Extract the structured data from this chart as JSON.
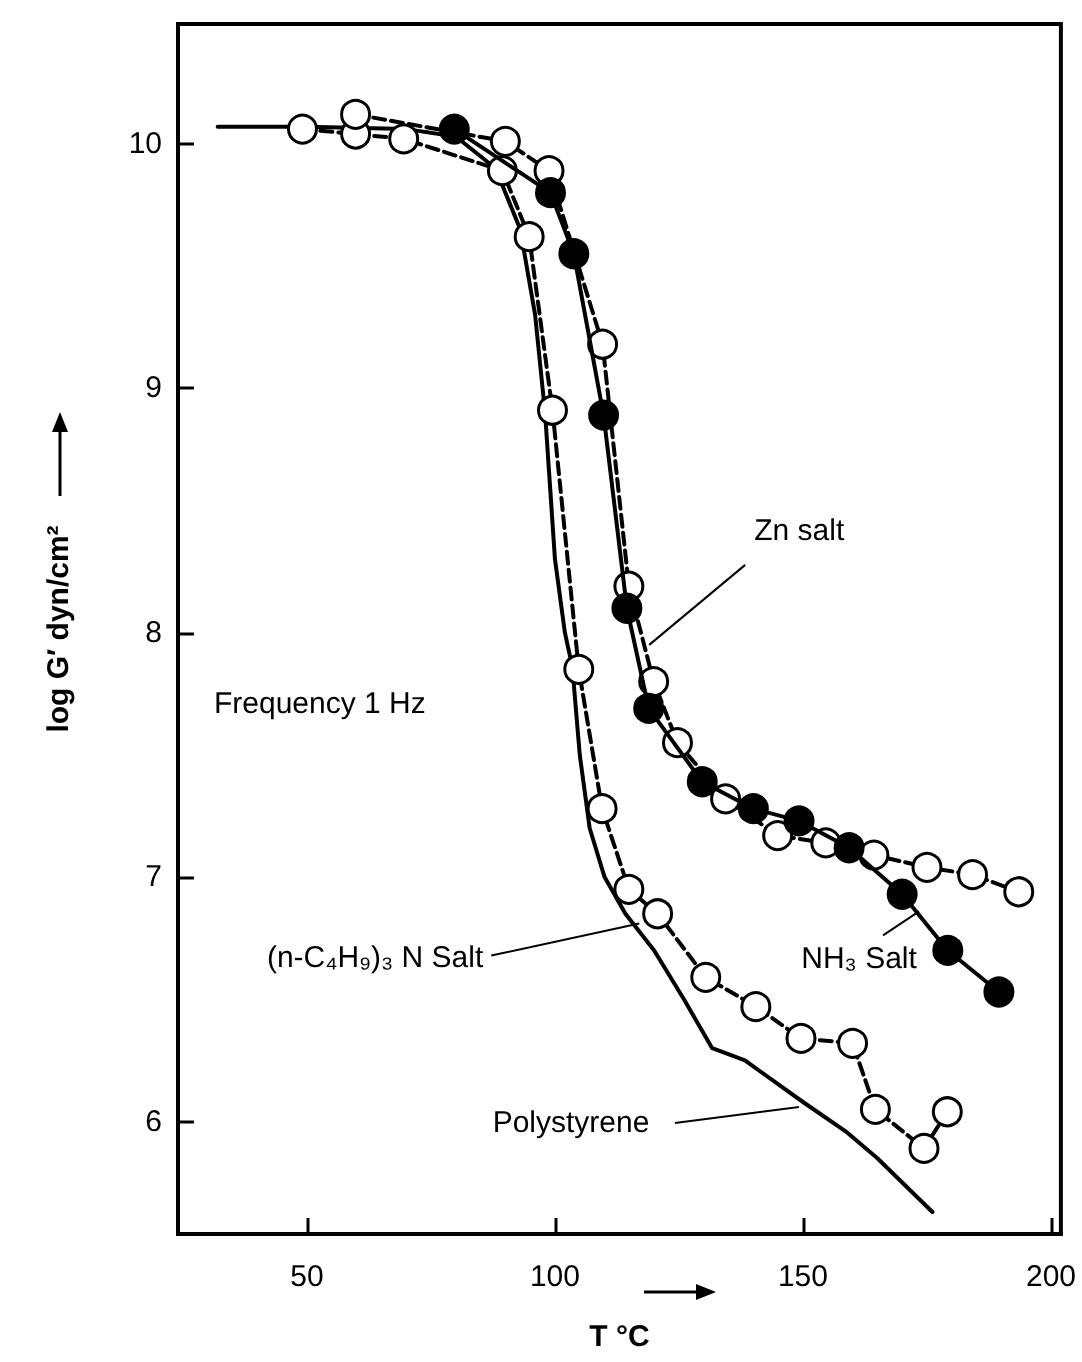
{
  "chart_data": {
    "type": "line",
    "xlabel": "T °C",
    "ylabel": "log G′ dyn/cm²",
    "xlim": [
      24,
      202
    ],
    "ylim": [
      5.54,
      10.49
    ],
    "xticks": [
      50,
      100,
      150,
      200
    ],
    "yticks": [
      6,
      7,
      8,
      9,
      10
    ],
    "grid": false,
    "series": [
      {
        "color": "#000000",
        "line_style": "solid",
        "marker": "none",
        "x": [
          32,
          50,
          70,
          80,
          88,
          93,
          96,
          98,
          100,
          102,
          103.5,
          105,
          107,
          110,
          114.2,
          120,
          126,
          131.7,
          138.3,
          150,
          158.6,
          165,
          176.1
        ],
        "values": [
          10.07,
          10.07,
          10.06,
          10.03,
          9.9,
          9.65,
          9.3,
          8.9,
          8.3,
          8.0,
          7.86,
          7.5,
          7.2,
          7.0,
          6.85,
          6.7,
          6.5,
          6.3,
          6.25,
          6.08,
          5.96,
          5.85,
          5.63
        ]
      },
      {
        "color": "#000000",
        "colors": [
          "#ffffff",
          "#ffffff",
          "#ffffff",
          "#ffffff",
          "#ffffff",
          "#ffffff",
          "#ffffff",
          "#ffffff",
          "#ffffff",
          "#ffffff",
          "#ffffff",
          "#ffffff",
          "#ffffff",
          "#ffffff",
          "#ffffff",
          "#ffffff",
          "#ffffff"
        ],
        "line_style": "dashed",
        "marker": "circle",
        "x": [
          49.1,
          59.8,
          69.5,
          89.4,
          94.8,
          99.5,
          104.8,
          109.5,
          114.9,
          120.7,
          130.4,
          140.5,
          149.6,
          160,
          164.6,
          174.4,
          179.1
        ],
        "values": [
          10.06,
          10.04,
          10.02,
          9.89,
          9.62,
          8.91,
          7.85,
          7.28,
          6.95,
          6.85,
          6.59,
          6.47,
          6.34,
          6.32,
          6.05,
          5.89,
          6.04
        ]
      },
      {
        "color": "#000000",
        "colors": [
          "#ffffff",
          "#ffffff",
          "#ffffff",
          "#ffffff",
          "#ffffff",
          "#ffffff",
          "#ffffff",
          "#ffffff",
          "#ffffff",
          "#ffffff",
          "#ffffff",
          "#ffffff",
          "#ffffff",
          "#ffffff"
        ],
        "line_style": "dashed",
        "marker": "circle",
        "x": [
          59.8,
          90.0,
          98.8,
          109.6,
          114.9,
          119.9,
          124.7,
          134.4,
          144.9,
          154.6,
          164.3,
          175.0,
          184.2,
          193.5
        ],
        "values": [
          10.12,
          10.01,
          9.89,
          9.18,
          8.19,
          7.8,
          7.55,
          7.32,
          7.17,
          7.14,
          7.09,
          7.04,
          7.01,
          6.94
        ]
      },
      {
        "color": "#000000",
        "colors": [
          "#000000",
          "#000000",
          "#000000",
          "#000000",
          "#000000",
          "#000000",
          "#000000",
          "#000000",
          "#000000",
          "#000000",
          "#000000",
          "#000000",
          "#000000"
        ],
        "line_style": "solid",
        "marker": "circle",
        "x": [
          79.7,
          99.1,
          103.8,
          109.8,
          114.5,
          118.9,
          129.7,
          140.0,
          149.2,
          159.3,
          170.0,
          179.2,
          189.5
        ],
        "values": [
          10.06,
          9.8,
          9.55,
          8.89,
          8.1,
          7.69,
          7.39,
          7.28,
          7.23,
          7.12,
          6.93,
          6.7,
          6.53
        ]
      }
    ],
    "annotations": [
      {
        "text": "Zn salt",
        "x": 119,
        "y": 7.95
      },
      "Frequency 1 Hz",
      {
        "text": "(n-C₄H₉)₃ N Salt",
        "x": 117,
        "y": 6.81
      },
      {
        "text": "NH₃ Salt",
        "x": 173.4,
        "y": 6.86
      },
      {
        "text": "Polystyrene",
        "x": 149.2,
        "y": 6.06
      }
    ]
  }
}
